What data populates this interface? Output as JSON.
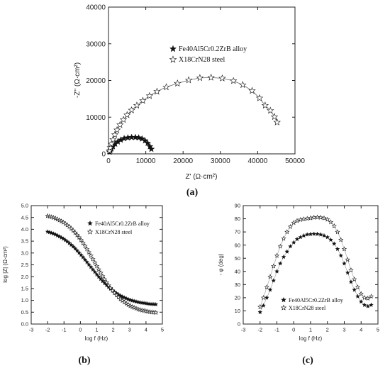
{
  "chart_data": [
    {
      "panel": "(a)",
      "type": "scatter",
      "xlabel": "Z' (Ω·cm²)",
      "ylabel": "-Z'' (Ω·cm²)",
      "xlim": [
        0,
        50000
      ],
      "ylim": [
        0,
        40000
      ],
      "xticks": [
        0,
        10000,
        20000,
        30000,
        40000,
        50000
      ],
      "yticks": [
        0,
        10000,
        20000,
        30000,
        40000
      ],
      "legend_position": "top-right",
      "series": [
        {
          "name": "Fe40Al5Cr0.2ZrB alloy",
          "marker": "filled-star",
          "fit_line": false,
          "points": [
            [
              300,
              500
            ],
            [
              500,
              900
            ],
            [
              800,
              1400
            ],
            [
              1200,
              2000
            ],
            [
              1800,
              2700
            ],
            [
              2500,
              3300
            ],
            [
              3300,
              3800
            ],
            [
              4200,
              4200
            ],
            [
              5200,
              4400
            ],
            [
              6200,
              4500
            ],
            [
              7200,
              4500
            ],
            [
              8100,
              4400
            ],
            [
              9000,
              4100
            ],
            [
              9800,
              3600
            ],
            [
              10500,
              2900
            ],
            [
              11100,
              2000
            ],
            [
              11500,
              1300
            ]
          ]
        },
        {
          "name": "X18CrN28 steel",
          "marker": "open-star",
          "fit_line": true,
          "points": [
            [
              250,
              800
            ],
            [
              500,
              1700
            ],
            [
              800,
              2700
            ],
            [
              1200,
              3900
            ],
            [
              1700,
              5200
            ],
            [
              2300,
              6500
            ],
            [
              3100,
              7900
            ],
            [
              4000,
              9300
            ],
            [
              5000,
              10600
            ],
            [
              6200,
              11900
            ],
            [
              7600,
              13200
            ],
            [
              9200,
              14500
            ],
            [
              11000,
              15800
            ],
            [
              13000,
              17000
            ],
            [
              15500,
              18200
            ],
            [
              18500,
              19200
            ],
            [
              21500,
              20100
            ],
            [
              24500,
              20700
            ],
            [
              27500,
              20800
            ],
            [
              30500,
              20600
            ],
            [
              33500,
              19900
            ],
            [
              36000,
              18800
            ],
            [
              38500,
              17200
            ],
            [
              40500,
              15200
            ],
            [
              42000,
              13200
            ],
            [
              43400,
              11800
            ],
            [
              44500,
              10100
            ],
            [
              45200,
              8600
            ]
          ]
        }
      ]
    },
    {
      "panel": "(b)",
      "type": "scatter",
      "xlabel": "log f (Hz)",
      "ylabel": "log |Z| (Ω·cm²)",
      "xlim": [
        -3,
        5
      ],
      "ylim": [
        0,
        5
      ],
      "xticks": [
        -3,
        -2,
        -1,
        0,
        1,
        2,
        3,
        4,
        5
      ],
      "yticks": [
        0,
        0.5,
        1.0,
        1.5,
        2.0,
        2.5,
        3.0,
        3.5,
        4.0,
        4.5,
        5.0
      ],
      "legend_position": "top-right",
      "series": [
        {
          "name": "Fe40Al5Cr0.2ZrB alloy",
          "marker": "filled-star",
          "curve": {
            "from": -2,
            "to": 4.6,
            "step": 0.12,
            "high": 4.1,
            "low": 0.78,
            "center": 0.6,
            "width": 0.95
          }
        },
        {
          "name": "X18CrN28 steel",
          "marker": "open-star",
          "curve": {
            "from": -2,
            "to": 4.6,
            "step": 0.12,
            "high": 4.72,
            "low": 0.42,
            "center": 0.9,
            "width": 0.88
          }
        }
      ]
    },
    {
      "panel": "(c)",
      "type": "scatter",
      "xlabel": "log f (Hz)",
      "ylabel": "- φ (deg)",
      "xlim": [
        -3,
        5
      ],
      "ylim": [
        0,
        90
      ],
      "xticks": [
        -3,
        -2,
        -1,
        0,
        1,
        2,
        3,
        4,
        5
      ],
      "yticks": [
        0,
        10,
        20,
        30,
        40,
        50,
        60,
        70,
        80,
        90
      ],
      "legend_position": "bottom-right",
      "series": [
        {
          "name": "Fe40Al5Cr0.2ZrB alloy",
          "marker": "filled-star",
          "points": [
            [
              -2.0,
              9
            ],
            [
              -1.8,
              14
            ],
            [
              -1.6,
              20
            ],
            [
              -1.4,
              26
            ],
            [
              -1.2,
              33
            ],
            [
              -1.0,
              40
            ],
            [
              -0.8,
              46
            ],
            [
              -0.6,
              51
            ],
            [
              -0.4,
              55
            ],
            [
              -0.2,
              59
            ],
            [
              0.0,
              62
            ],
            [
              0.2,
              64.5
            ],
            [
              0.4,
              66
            ],
            [
              0.6,
              67.2
            ],
            [
              0.8,
              68
            ],
            [
              1.0,
              68.3
            ],
            [
              1.2,
              68.5
            ],
            [
              1.4,
              68.4
            ],
            [
              1.6,
              68
            ],
            [
              1.8,
              67.2
            ],
            [
              2.0,
              66
            ],
            [
              2.2,
              64
            ],
            [
              2.4,
              61
            ],
            [
              2.6,
              57
            ],
            [
              2.8,
              52
            ],
            [
              3.0,
              46
            ],
            [
              3.2,
              39
            ],
            [
              3.4,
              32
            ],
            [
              3.6,
              26
            ],
            [
              3.8,
              21
            ],
            [
              4.0,
              17
            ],
            [
              4.2,
              14.5
            ],
            [
              4.4,
              13.5
            ],
            [
              4.6,
              14.5
            ]
          ]
        },
        {
          "name": "X18CrN28 steel",
          "marker": "open-star",
          "points": [
            [
              -2.0,
              13
            ],
            [
              -1.8,
              20
            ],
            [
              -1.6,
              28
            ],
            [
              -1.4,
              36
            ],
            [
              -1.2,
              44
            ],
            [
              -1.0,
              52
            ],
            [
              -0.8,
              59
            ],
            [
              -0.6,
              65
            ],
            [
              -0.4,
              70
            ],
            [
              -0.2,
              74
            ],
            [
              0.0,
              77
            ],
            [
              0.2,
              78.5
            ],
            [
              0.4,
              79.3
            ],
            [
              0.6,
              79.8
            ],
            [
              0.8,
              80.2
            ],
            [
              1.0,
              80.6
            ],
            [
              1.2,
              81
            ],
            [
              1.4,
              81.2
            ],
            [
              1.6,
              81
            ],
            [
              1.8,
              80.5
            ],
            [
              2.0,
              79.5
            ],
            [
              2.2,
              77.5
            ],
            [
              2.4,
              74.5
            ],
            [
              2.6,
              70
            ],
            [
              2.8,
              64
            ],
            [
              3.0,
              57
            ],
            [
              3.2,
              49
            ],
            [
              3.4,
              41
            ],
            [
              3.6,
              34
            ],
            [
              3.8,
              28
            ],
            [
              4.0,
              23
            ],
            [
              4.2,
              20
            ],
            [
              4.4,
              19.5
            ],
            [
              4.6,
              21
            ]
          ]
        }
      ]
    }
  ],
  "panels": [
    "(a)",
    "(b)",
    "(c)"
  ]
}
